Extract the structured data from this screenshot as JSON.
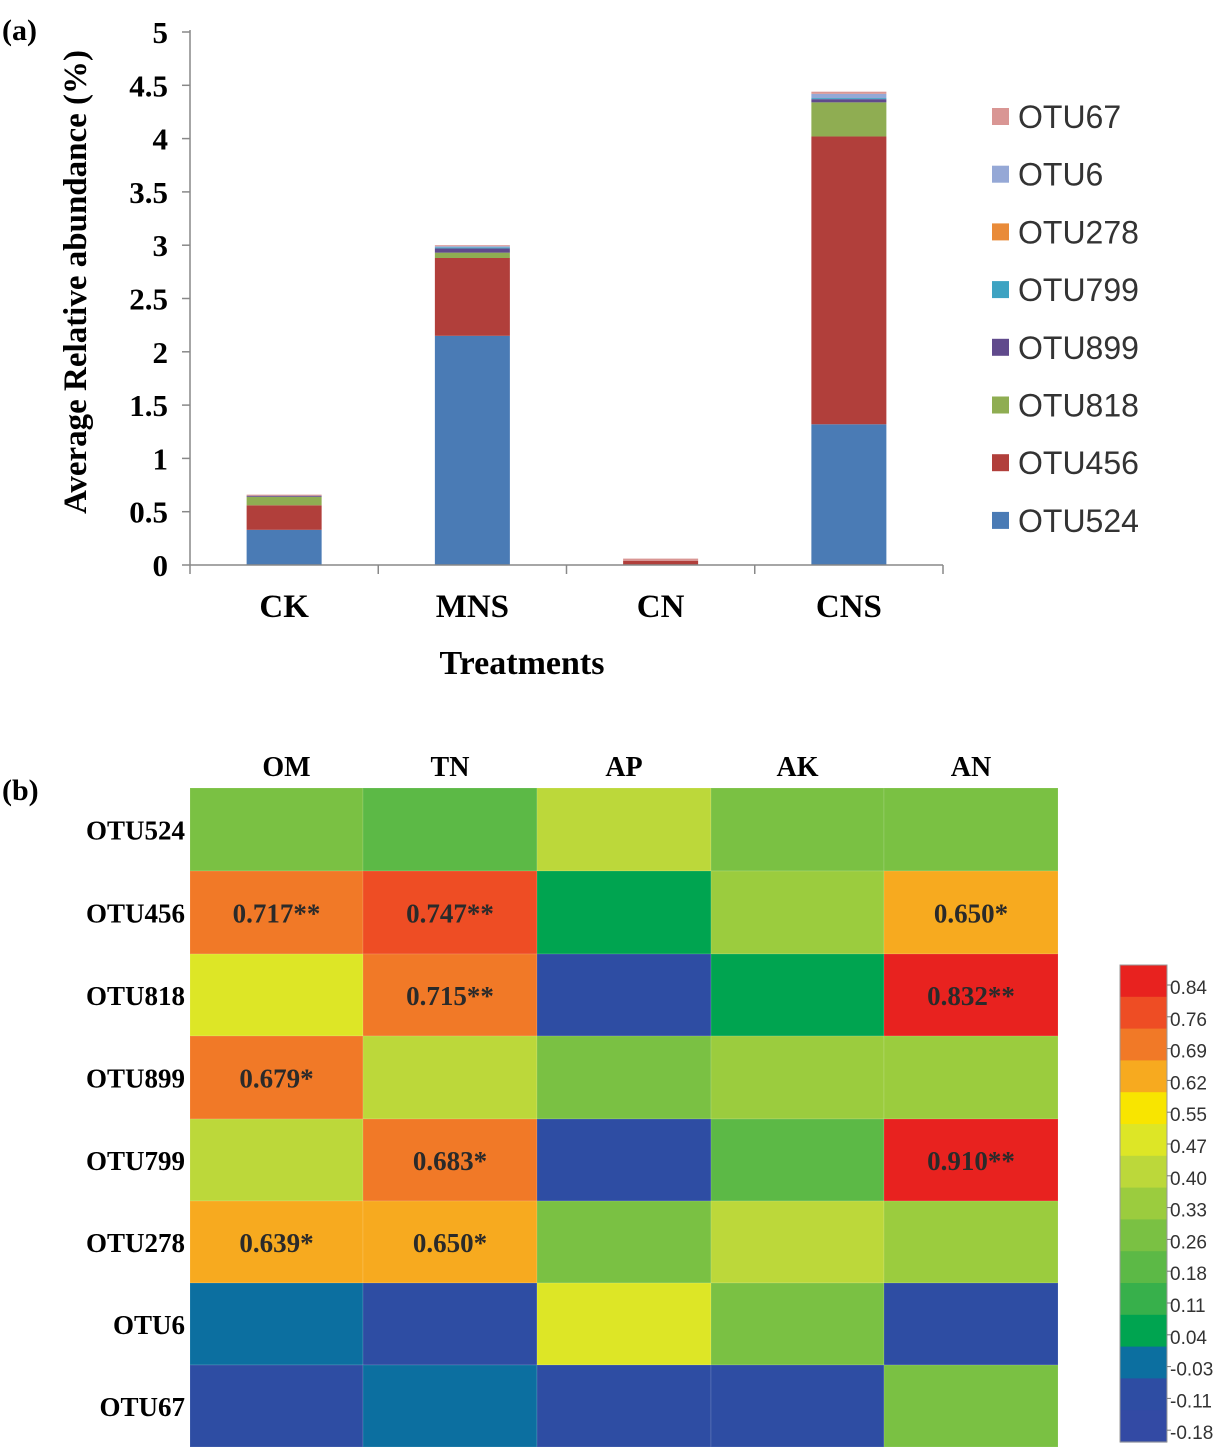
{
  "panel_a": {
    "label": "(a)"
  },
  "panel_b": {
    "label": "(b)"
  },
  "colors": {
    "OTU67": "#d99694",
    "OTU6": "#95a8d6",
    "OTU278": "#e98b39",
    "OTU799": "#3ea3c2",
    "OTU899": "#604a8c",
    "OTU818": "#8fad52",
    "OTU456": "#b13f3b",
    "OTU524": "#4a7bb5"
  },
  "chart_data": [
    {
      "type": "bar",
      "stacked": true,
      "title": "",
      "xlabel": "Treatments",
      "ylabel": "Average Relative abundance (%)",
      "ylim": [
        0,
        5
      ],
      "yticks": [
        "0",
        "0.5",
        "1",
        "1.5",
        "2",
        "2.5",
        "3",
        "3.5",
        "4",
        "4.5",
        "5"
      ],
      "categories": [
        "CK",
        "MNS",
        "CN",
        "CNS"
      ],
      "legend_position": "right",
      "legend": [
        "OTU67",
        "OTU6",
        "OTU278",
        "OTU799",
        "OTU899",
        "OTU818",
        "OTU456",
        "OTU524"
      ],
      "series": [
        {
          "name": "OTU524",
          "values": [
            0.33,
            2.15,
            0.0,
            1.32
          ]
        },
        {
          "name": "OTU456",
          "values": [
            0.23,
            0.73,
            0.04,
            2.7
          ]
        },
        {
          "name": "OTU818",
          "values": [
            0.08,
            0.05,
            0.0,
            0.32
          ]
        },
        {
          "name": "OTU899",
          "values": [
            0.01,
            0.04,
            0.0,
            0.03
          ]
        },
        {
          "name": "OTU799",
          "values": [
            0.0,
            0.01,
            0.0,
            0.01
          ]
        },
        {
          "name": "OTU278",
          "values": [
            0.0,
            0.0,
            0.0,
            0.0
          ]
        },
        {
          "name": "OTU6",
          "values": [
            0.0,
            0.01,
            0.0,
            0.04
          ]
        },
        {
          "name": "OTU67",
          "values": [
            0.01,
            0.01,
            0.02,
            0.02
          ]
        }
      ]
    },
    {
      "type": "heatmap",
      "columns": [
        "OM",
        "TN",
        "AP",
        "AK",
        "AN"
      ],
      "rows": [
        "OTU524",
        "OTU456",
        "OTU818",
        "OTU899",
        "OTU799",
        "OTU278",
        "OTU6",
        "OTU67"
      ],
      "values": [
        [
          0.28,
          0.2,
          0.4,
          0.24,
          0.22
        ],
        [
          0.717,
          0.747,
          0.05,
          0.31,
          0.65
        ],
        [
          0.5,
          0.715,
          -0.12,
          0.06,
          0.832
        ],
        [
          0.679,
          0.4,
          0.24,
          0.34,
          0.33
        ],
        [
          0.43,
          0.683,
          -0.13,
          0.2,
          0.91
        ],
        [
          0.639,
          0.65,
          0.27,
          0.41,
          0.32
        ],
        [
          -0.03,
          -0.12,
          0.5,
          0.24,
          -0.11
        ],
        [
          -0.12,
          -0.03,
          -0.13,
          -0.13,
          0.22
        ]
      ],
      "annotations": [
        [
          "",
          "",
          "",
          "",
          ""
        ],
        [
          "0.717**",
          "0.747**",
          "",
          "",
          "0.650*"
        ],
        [
          "",
          "0.715**",
          "",
          "",
          "0.832**"
        ],
        [
          "0.679*",
          "",
          "",
          "",
          ""
        ],
        [
          "",
          "0.683*",
          "",
          "",
          "0.910**"
        ],
        [
          "0.639*",
          "0.650*",
          "",
          "",
          ""
        ],
        [
          "",
          "",
          "",
          "",
          ""
        ],
        [
          "",
          "",
          "",
          "",
          ""
        ]
      ],
      "colorbar": {
        "labels": [
          "0.84",
          "0.76",
          "0.69",
          "0.62",
          "0.55",
          "0.47",
          "0.40",
          "0.33",
          "0.26",
          "0.18",
          "0.11",
          "0.04",
          "-0.03",
          "-0.11",
          "-0.18"
        ],
        "colors": [
          "#e8221f",
          "#ee4d24",
          "#f17927",
          "#f7aa1f",
          "#f8e500",
          "#dde626",
          "#bcd83a",
          "#9bcc3e",
          "#7ac143",
          "#5cb946",
          "#37b04b",
          "#00a450",
          "#0c6fa0",
          "#2e4da3",
          "#334aa4"
        ]
      }
    }
  ]
}
